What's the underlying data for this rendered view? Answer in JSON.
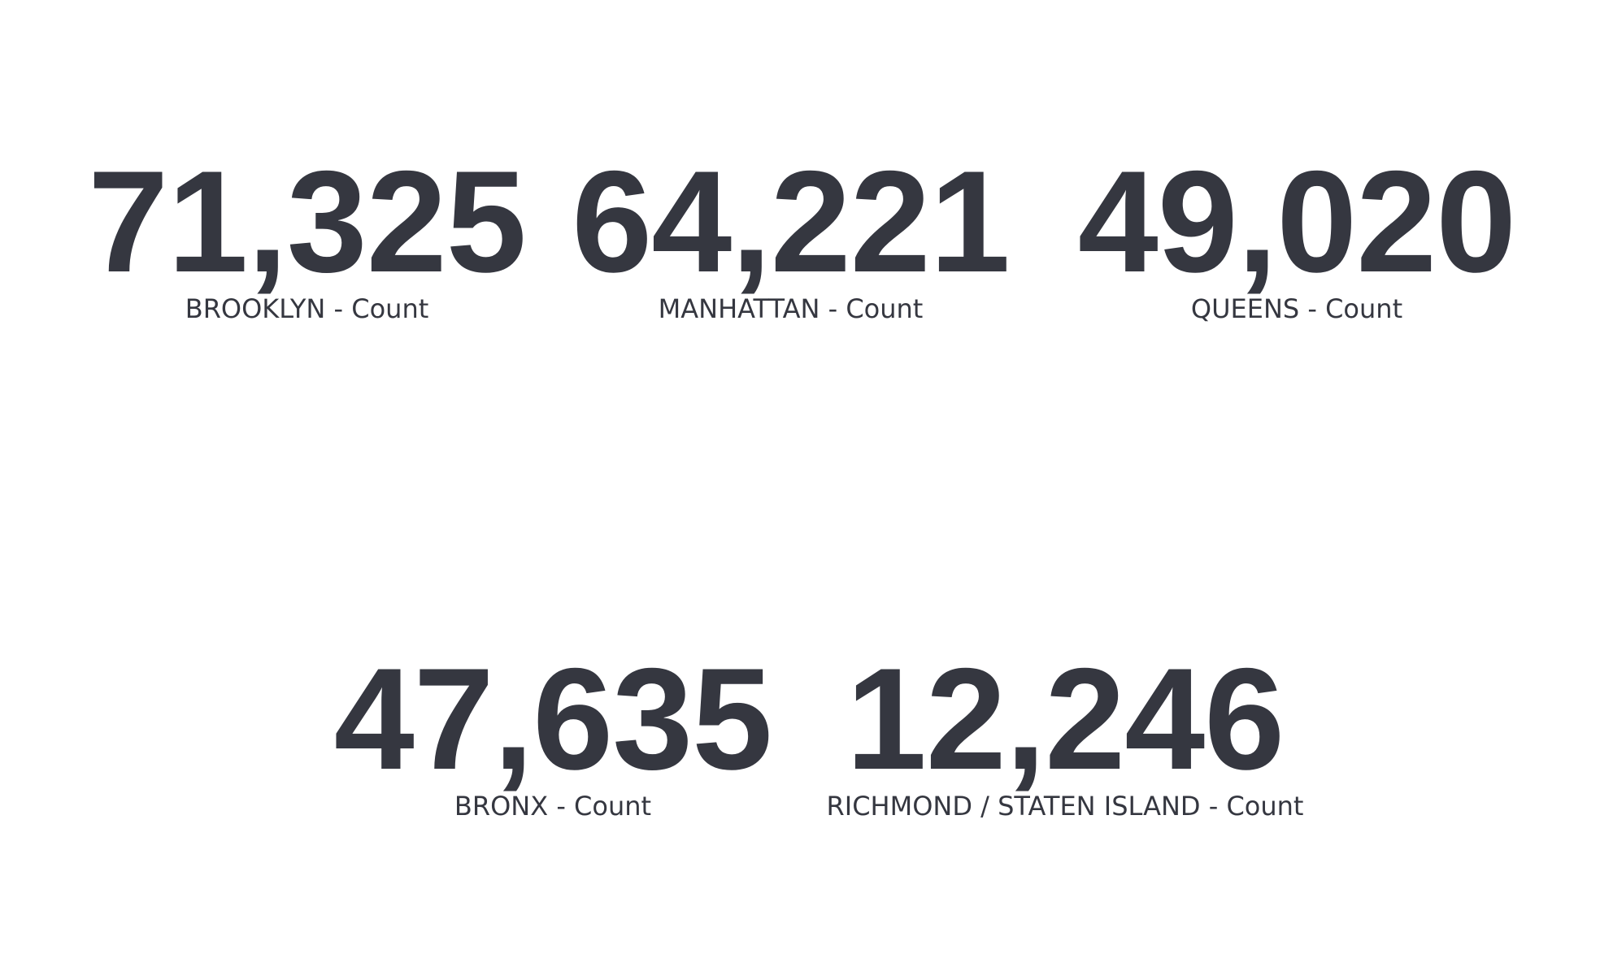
{
  "chart_data": {
    "type": "table",
    "metrics": [
      {
        "value": "71,325",
        "label": "BROOKLYN - Count"
      },
      {
        "value": "64,221",
        "label": "MANHATTAN - Count"
      },
      {
        "value": "49,020",
        "label": "QUEENS - Count"
      },
      {
        "value": "47,635",
        "label": "BRONX - Count"
      },
      {
        "value": "12,246",
        "label": "RICHMOND / STATEN ISLAND - Count"
      }
    ],
    "categories": [
      "BROOKLYN",
      "MANHATTAN",
      "QUEENS",
      "BRONX",
      "RICHMOND / STATEN ISLAND"
    ],
    "values": [
      71325,
      64221,
      49020,
      47635,
      12246
    ]
  },
  "colors": {
    "text": "#353740",
    "background": "#ffffff"
  }
}
